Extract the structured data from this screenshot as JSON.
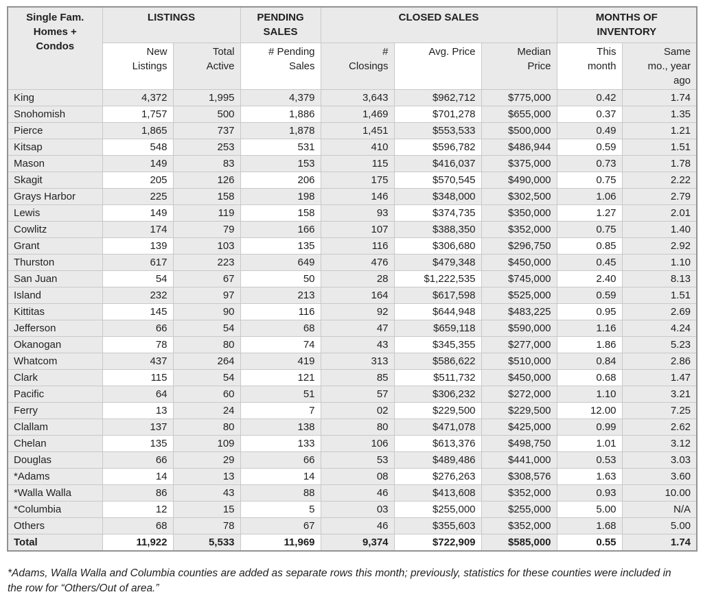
{
  "table": {
    "corner_label": "Single Fam.\nHomes +\nCondos",
    "groups": [
      {
        "label": "LISTINGS"
      },
      {
        "label": "PENDING\nSALES"
      },
      {
        "label": "CLOSED SALES"
      },
      {
        "label": "MONTHS OF\nINVENTORY"
      }
    ],
    "subheaders": [
      "New\nListings",
      "Total\nActive",
      "# Pending\nSales",
      "#\nClosings",
      "Avg. Price",
      "Median\nPrice",
      "This\nmonth",
      "Same\nmo., year\nago"
    ],
    "rows": [
      {
        "county": "King",
        "values": [
          "4,372",
          "1,995",
          "4,379",
          "3,643",
          "$962,712",
          "$775,000",
          "0.42",
          "1.74"
        ]
      },
      {
        "county": "Snohomish",
        "values": [
          "1,757",
          "500",
          "1,886",
          "1,469",
          "$701,278",
          "$655,000",
          "0.37",
          "1.35"
        ]
      },
      {
        "county": "Pierce",
        "values": [
          "1,865",
          "737",
          "1,878",
          "1,451",
          "$553,533",
          "$500,000",
          "0.49",
          "1.21"
        ]
      },
      {
        "county": "Kitsap",
        "values": [
          "548",
          "253",
          "531",
          "410",
          "$596,782",
          "$486,944",
          "0.59",
          "1.51"
        ]
      },
      {
        "county": "Mason",
        "values": [
          "149",
          "83",
          "153",
          "115",
          "$416,037",
          "$375,000",
          "0.73",
          "1.78"
        ]
      },
      {
        "county": "Skagit",
        "values": [
          "205",
          "126",
          "206",
          "175",
          "$570,545",
          "$490,000",
          "0.75",
          "2.22"
        ]
      },
      {
        "county": "Grays Harbor",
        "values": [
          "225",
          "158",
          "198",
          "146",
          "$348,000",
          "$302,500",
          "1.06",
          "2.79"
        ]
      },
      {
        "county": "Lewis",
        "values": [
          "149",
          "119",
          "158",
          "93",
          "$374,735",
          "$350,000",
          "1.27",
          "2.01"
        ]
      },
      {
        "county": "Cowlitz",
        "values": [
          "174",
          "79",
          "166",
          "107",
          "$388,350",
          "$352,000",
          "0.75",
          "1.40"
        ]
      },
      {
        "county": "Grant",
        "values": [
          "139",
          "103",
          "135",
          "116",
          "$306,680",
          "$296,750",
          "0.85",
          "2.92"
        ]
      },
      {
        "county": "Thurston",
        "values": [
          "617",
          "223",
          "649",
          "476",
          "$479,348",
          "$450,000",
          "0.45",
          "1.10"
        ]
      },
      {
        "county": "San Juan",
        "values": [
          "54",
          "67",
          "50",
          "28",
          "$1,222,535",
          "$745,000",
          "2.40",
          "8.13"
        ]
      },
      {
        "county": "Island",
        "values": [
          "232",
          "97",
          "213",
          "164",
          "$617,598",
          "$525,000",
          "0.59",
          "1.51"
        ]
      },
      {
        "county": "Kittitas",
        "values": [
          "145",
          "90",
          "116",
          "92",
          "$644,948",
          "$483,225",
          "0.95",
          "2.69"
        ]
      },
      {
        "county": "Jefferson",
        "values": [
          "66",
          "54",
          "68",
          "47",
          "$659,118",
          "$590,000",
          "1.16",
          "4.24"
        ]
      },
      {
        "county": "Okanogan",
        "values": [
          "78",
          "80",
          "74",
          "43",
          "$345,355",
          "$277,000",
          "1.86",
          "5.23"
        ]
      },
      {
        "county": "Whatcom",
        "values": [
          "437",
          "264",
          "419",
          "313",
          "$586,622",
          "$510,000",
          "0.84",
          "2.86"
        ]
      },
      {
        "county": "Clark",
        "values": [
          "115",
          "54",
          "121",
          "85",
          "$511,732",
          "$450,000",
          "0.68",
          "1.47"
        ]
      },
      {
        "county": "Pacific",
        "values": [
          "64",
          "60",
          "51",
          "57",
          "$306,232",
          "$272,000",
          "1.10",
          "3.21"
        ]
      },
      {
        "county": "Ferry",
        "values": [
          "13",
          "24",
          "7",
          "02",
          "$229,500",
          "$229,500",
          "12.00",
          "7.25"
        ]
      },
      {
        "county": "Clallam",
        "values": [
          "137",
          "80",
          "138",
          "80",
          "$471,078",
          "$425,000",
          "0.99",
          "2.62"
        ]
      },
      {
        "county": "Chelan",
        "values": [
          "135",
          "109",
          "133",
          "106",
          "$613,376",
          "$498,750",
          "1.01",
          "3.12"
        ]
      },
      {
        "county": "Douglas",
        "values": [
          "66",
          "29",
          "66",
          "53",
          "$489,486",
          "$441,000",
          "0.53",
          "3.03"
        ]
      },
      {
        "county": "*Adams",
        "values": [
          "14",
          "13",
          "14",
          "08",
          "$276,263",
          "$308,576",
          "1.63",
          "3.60"
        ]
      },
      {
        "county": "*Walla Walla",
        "values": [
          "86",
          "43",
          "88",
          "46",
          "$413,608",
          "$352,000",
          "0.93",
          "10.00"
        ]
      },
      {
        "county": "*Columbia",
        "values": [
          "12",
          "15",
          "5",
          "03",
          "$255,000",
          "$255,000",
          "5.00",
          "N/A"
        ]
      },
      {
        "county": "Others",
        "values": [
          "68",
          "78",
          "67",
          "46",
          "$355,603",
          "$352,000",
          "1.68",
          "5.00"
        ]
      },
      {
        "county": "Total",
        "values": [
          "11,922",
          "5,533",
          "11,969",
          "9,374",
          "$722,909",
          "$585,000",
          "0.55",
          "1.74"
        ],
        "bold": true
      }
    ]
  },
  "footnote": "*Adams, Walla Walla and Columbia counties are added as separate rows this month; previously, statistics for these counties were included in the row for “Others/Out of area.”",
  "colors": {
    "row_shading": "#eaeaea",
    "cell_white": "#ffffff",
    "grid_line": "#c8c8c8",
    "outer_border": "#919191"
  }
}
